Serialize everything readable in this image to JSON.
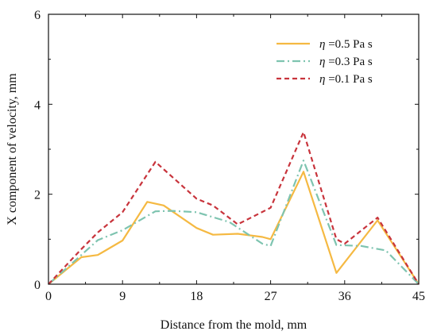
{
  "chart_data": {
    "type": "line",
    "title": "",
    "xlabel": "Distance from the mold, mm",
    "ylabel": "X component of velocity, mm",
    "xlim": [
      0,
      45
    ],
    "ylim": [
      0,
      6
    ],
    "xticks": [
      0,
      9,
      18,
      27,
      36,
      45
    ],
    "yticks": [
      0,
      2,
      4,
      6
    ],
    "grid": false,
    "legend_position": "top-right",
    "series": [
      {
        "name": "η =0.5 Pa s",
        "legend_symbol": "η",
        "legend_rest": " =0.5 Pa s",
        "color": "#f5b942",
        "dash": "solid",
        "x": [
          0,
          4,
          6,
          9,
          12,
          14,
          18,
          20,
          23,
          26,
          27,
          31,
          35,
          40,
          45
        ],
        "y": [
          0,
          0.6,
          0.65,
          0.97,
          1.83,
          1.75,
          1.25,
          1.1,
          1.12,
          1.05,
          1.0,
          2.5,
          0.25,
          1.42,
          0
        ]
      },
      {
        "name": "η =0.3 Pa s",
        "legend_symbol": "η",
        "legend_rest": " =0.3 Pa s",
        "color": "#7ec4b0",
        "dash": "dashdot",
        "x": [
          0,
          4,
          6,
          9,
          13,
          15,
          18,
          22,
          26,
          27,
          31,
          35,
          38,
          41,
          45
        ],
        "y": [
          0,
          0.65,
          0.98,
          1.2,
          1.62,
          1.63,
          1.6,
          1.38,
          0.9,
          0.85,
          2.75,
          0.87,
          0.85,
          0.75,
          0
        ]
      },
      {
        "name": "η =0.1 Pa s",
        "legend_symbol": "η",
        "legend_rest": " =0.1 Pa s",
        "color": "#c8343c",
        "dash": "dashed",
        "x": [
          0,
          4,
          6,
          9,
          13,
          18,
          20,
          23,
          27,
          31,
          35,
          36,
          40,
          45
        ],
        "y": [
          0,
          0.78,
          1.15,
          1.6,
          2.72,
          1.9,
          1.75,
          1.33,
          1.7,
          3.38,
          1.0,
          0.9,
          1.48,
          0
        ]
      }
    ]
  }
}
